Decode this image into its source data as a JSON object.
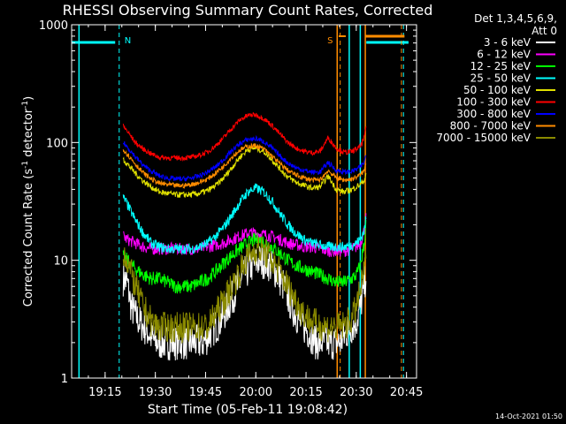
{
  "chart_data": {
    "type": "line",
    "title": "RHESSI Observing Summary Count Rates, Corrected",
    "xlabel": "Start Time (05-Feb-11 19:08:42)",
    "ylabel_main": "Corrected Count Rate (s",
    "ylabel_sup1": "-1",
    "ylabel_mid": " detector",
    "ylabel_sup2": "-1",
    "ylabel_end": ")",
    "yscale": "log",
    "ylim": [
      1,
      1000
    ],
    "xlim": [
      19.0833,
      20.8
    ],
    "x_ticks": [
      {
        "value": 19.25,
        "label": "19:15"
      },
      {
        "value": 19.5,
        "label": "19:30"
      },
      {
        "value": 19.75,
        "label": "19:45"
      },
      {
        "value": 20.0,
        "label": "20:00"
      },
      {
        "value": 20.25,
        "label": "20:15"
      },
      {
        "value": 20.5,
        "label": "20:30"
      },
      {
        "value": 20.75,
        "label": "20:45"
      }
    ],
    "y_ticks": [
      {
        "value": 1,
        "label": "1"
      },
      {
        "value": 10,
        "label": "10"
      },
      {
        "value": 100,
        "label": "100"
      },
      {
        "value": 1000,
        "label": "1000"
      }
    ],
    "legend_header": [
      "Det 1,3,4,5,6,9,",
      "Att 0"
    ],
    "legend_position": "outside-right",
    "series": [
      {
        "name": "3 - 6 keV",
        "color": "#ffffff",
        "x": [
          19.34,
          19.36,
          19.38,
          19.42,
          19.46,
          19.5,
          19.54,
          19.58,
          19.62,
          19.66,
          19.7,
          19.74,
          19.78,
          19.82,
          19.86,
          19.9,
          19.94,
          19.98,
          20.02,
          20.06,
          20.1,
          20.14,
          20.18,
          20.22,
          20.26,
          20.3,
          20.34,
          20.38,
          20.42,
          20.46,
          20.5,
          20.52,
          20.54,
          20.55
        ],
        "y": [
          7,
          6.5,
          4,
          3,
          2.5,
          2,
          2,
          2,
          2,
          2,
          2,
          2,
          2.5,
          3,
          4,
          5.5,
          7.5,
          9,
          10,
          9.5,
          8,
          6,
          4,
          3,
          2.5,
          2,
          2,
          2,
          2,
          2.5,
          3,
          4,
          6,
          8
        ]
      },
      {
        "name": "6 - 12 keV",
        "color": "#ff00ff",
        "x": [
          19.34,
          19.36,
          19.4,
          19.44,
          19.48,
          19.52,
          19.56,
          19.6,
          19.64,
          19.68,
          19.72,
          19.76,
          19.8,
          19.84,
          19.88,
          19.92,
          19.96,
          20.0,
          20.04,
          20.08,
          20.12,
          20.16,
          20.2,
          20.24,
          20.28,
          20.32,
          20.36,
          20.4,
          20.44,
          20.48,
          20.5,
          20.52,
          20.54,
          20.55
        ],
        "y": [
          16,
          15,
          14,
          13,
          12.5,
          12.5,
          12.5,
          12.5,
          12.5,
          12.5,
          12.5,
          13,
          13.5,
          14,
          15,
          16,
          17,
          17,
          16.5,
          16,
          15,
          14,
          13.5,
          13,
          13,
          12.5,
          12,
          12,
          12,
          12.5,
          13,
          14,
          18,
          24
        ]
      },
      {
        "name": "12 - 25 keV",
        "color": "#00ff00",
        "x": [
          19.34,
          19.36,
          19.4,
          19.44,
          19.48,
          19.52,
          19.56,
          19.6,
          19.64,
          19.68,
          19.72,
          19.76,
          19.8,
          19.84,
          19.88,
          19.92,
          19.96,
          20.0,
          20.04,
          20.08,
          20.12,
          20.16,
          20.2,
          20.24,
          20.28,
          20.32,
          20.36,
          20.4,
          20.44,
          20.48,
          20.5,
          20.52,
          20.54,
          20.55
        ],
        "y": [
          11,
          10,
          8.5,
          7.5,
          7,
          7,
          6.5,
          6,
          6,
          6,
          6.5,
          7,
          8,
          9.5,
          11,
          12.5,
          14,
          15,
          14.5,
          13,
          11.5,
          10,
          9,
          8.5,
          8,
          7.5,
          7,
          6.5,
          6.5,
          7,
          7.5,
          9,
          14,
          22
        ]
      },
      {
        "name": "25 - 50 keV",
        "color": "#00ffff",
        "x": [
          19.34,
          19.36,
          19.4,
          19.44,
          19.48,
          19.52,
          19.56,
          19.6,
          19.64,
          19.68,
          19.72,
          19.76,
          19.8,
          19.84,
          19.88,
          19.92,
          19.96,
          20.0,
          20.04,
          20.08,
          20.12,
          20.16,
          20.2,
          20.24,
          20.28,
          20.32,
          20.36,
          20.4,
          20.44,
          20.48,
          20.5,
          20.52,
          20.54,
          20.55
        ],
        "y": [
          34,
          30,
          22,
          17,
          14,
          13,
          12.5,
          12.5,
          12.5,
          12.5,
          13,
          14,
          16,
          19,
          24,
          31,
          38,
          41,
          38,
          32,
          25,
          20,
          17,
          15,
          14,
          13.5,
          13,
          13,
          13,
          13.5,
          14,
          15,
          18,
          24
        ]
      },
      {
        "name": "50 - 100 keV",
        "color": "#e0e000",
        "x": [
          19.34,
          19.36,
          19.4,
          19.44,
          19.48,
          19.52,
          19.56,
          19.6,
          19.64,
          19.68,
          19.72,
          19.76,
          19.8,
          19.84,
          19.88,
          19.92,
          19.96,
          20.0,
          20.04,
          20.08,
          20.12,
          20.16,
          20.2,
          20.24,
          20.28,
          20.32,
          20.36,
          20.4,
          20.44,
          20.48,
          20.5,
          20.52,
          20.54,
          20.55
        ],
        "y": [
          72,
          66,
          55,
          47,
          42,
          38,
          37,
          36,
          36,
          36,
          37,
          39,
          43,
          50,
          61,
          75,
          87,
          90,
          84,
          72,
          60,
          51,
          46,
          43,
          41,
          42,
          52,
          40,
          38,
          40,
          42,
          44,
          48,
          55
        ]
      },
      {
        "name": "100 - 300 keV",
        "color": "#ff0000",
        "x": [
          19.34,
          19.36,
          19.4,
          19.44,
          19.48,
          19.52,
          19.56,
          19.6,
          19.64,
          19.68,
          19.72,
          19.76,
          19.8,
          19.84,
          19.88,
          19.92,
          19.96,
          20.0,
          20.04,
          20.08,
          20.12,
          20.16,
          20.2,
          20.24,
          20.28,
          20.32,
          20.36,
          20.4,
          20.44,
          20.48,
          20.5,
          20.52,
          20.54,
          20.55
        ],
        "y": [
          138,
          125,
          100,
          88,
          80,
          75,
          74,
          74,
          74,
          75,
          78,
          83,
          94,
          110,
          132,
          155,
          170,
          172,
          160,
          140,
          118,
          100,
          90,
          84,
          82,
          84,
          110,
          90,
          82,
          84,
          88,
          92,
          110,
          140
        ]
      },
      {
        "name": "300 - 800 keV",
        "color": "#0000ff",
        "x": [
          19.34,
          19.36,
          19.4,
          19.44,
          19.48,
          19.52,
          19.56,
          19.6,
          19.64,
          19.68,
          19.72,
          19.76,
          19.8,
          19.84,
          19.88,
          19.92,
          19.96,
          20.0,
          20.04,
          20.08,
          20.12,
          20.16,
          20.2,
          20.24,
          20.28,
          20.32,
          20.36,
          20.4,
          20.44,
          20.48,
          20.5,
          20.52,
          20.54,
          20.55
        ],
        "y": [
          100,
          92,
          76,
          64,
          57,
          52,
          50,
          49,
          49,
          50,
          52,
          56,
          62,
          72,
          85,
          98,
          106,
          108,
          102,
          90,
          77,
          67,
          61,
          58,
          56,
          56,
          68,
          58,
          56,
          57,
          59,
          62,
          68,
          80
        ]
      },
      {
        "name": "800 - 7000 keV",
        "color": "#ff8c00",
        "x": [
          19.34,
          19.36,
          19.4,
          19.44,
          19.48,
          19.52,
          19.56,
          19.6,
          19.64,
          19.68,
          19.72,
          19.76,
          19.8,
          19.84,
          19.88,
          19.92,
          19.96,
          20.0,
          20.04,
          20.08,
          20.12,
          20.16,
          20.2,
          20.24,
          20.28,
          20.32,
          20.36,
          20.4,
          20.44,
          20.48,
          20.5,
          20.52,
          20.54,
          20.55
        ],
        "y": [
          88,
          80,
          66,
          55,
          49,
          45,
          44,
          43,
          43,
          44,
          46,
          49,
          55,
          63,
          75,
          86,
          93,
          94,
          88,
          77,
          66,
          58,
          53,
          50,
          48,
          48,
          58,
          50,
          48,
          49,
          51,
          53,
          58,
          68
        ]
      },
      {
        "name": "7000 - 15000 keV",
        "color": "#8b8b00",
        "x": [
          19.34,
          19.36,
          19.4,
          19.44,
          19.48,
          19.52,
          19.56,
          19.6,
          19.64,
          19.68,
          19.72,
          19.76,
          19.8,
          19.84,
          19.88,
          19.92,
          19.96,
          20.0,
          20.04,
          20.08,
          20.12,
          20.16,
          20.2,
          20.24,
          20.28,
          20.32,
          20.36,
          20.4,
          20.44,
          20.48,
          20.5,
          20.52,
          20.54,
          20.55
        ],
        "y": [
          12,
          10,
          6,
          4,
          3,
          2.7,
          2.7,
          2.7,
          2.7,
          2.7,
          2.7,
          2.7,
          3.5,
          4.5,
          6,
          8,
          10.5,
          12.5,
          12,
          10,
          8,
          6,
          4.5,
          3.5,
          3,
          2.8,
          2.7,
          2.7,
          2.8,
          3.2,
          4,
          5.5,
          8,
          11
        ]
      }
    ],
    "annotations": [
      {
        "label": "N",
        "color": "#00ffff",
        "x": 19.32
      },
      {
        "label": "S",
        "color": "#ff8c00",
        "x": 20.4
      }
    ],
    "events": {
      "cyan_solid_x": [
        19.12,
        20.465,
        20.52
      ],
      "cyan_dashed_x": [
        19.32,
        20.735
      ],
      "cyan_bars": [
        [
          19.083,
          19.3
        ],
        [
          20.55,
          20.76
        ]
      ],
      "orange_solid_x": [
        20.405,
        20.545
      ],
      "orange_dashed_x": [
        20.42,
        20.725
      ],
      "orange_bars": [
        [
          20.545,
          20.74
        ]
      ],
      "orange_marker_x": 20.43
    }
  },
  "timestamp": "14-Oct-2021 01:50"
}
